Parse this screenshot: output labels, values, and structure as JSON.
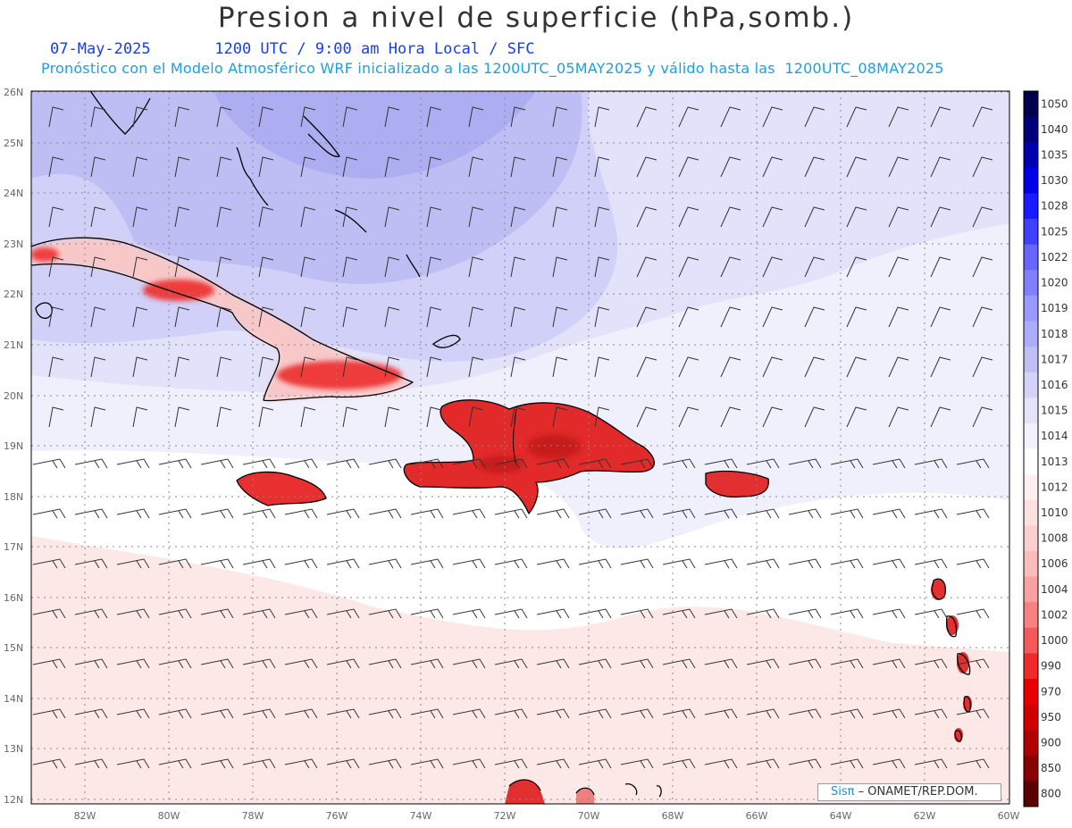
{
  "header": {
    "title": "Presion a nivel de superficie (hPa,somb.)",
    "date": "07-May-2025",
    "time_info": "1200 UTC / 9:00 am Hora Local / SFC",
    "forecast_info": "Pronóstico con el Modelo Atmosférico WRF inicializado a las 1200UTC_05MAY2025 y válido hasta las  1200UTC_08MAY2025"
  },
  "map": {
    "lon_range": [
      -83.3,
      -60
    ],
    "lat_range": [
      11.8,
      26.1
    ],
    "lat_ticks": [
      "26N",
      "25N",
      "24N",
      "23N",
      "22N",
      "21N",
      "20N",
      "19N",
      "18N",
      "17N",
      "16N",
      "15N",
      "14N",
      "13N",
      "12N"
    ],
    "lon_ticks": [
      "82W",
      "80W",
      "78W",
      "76W",
      "74W",
      "72W",
      "70W",
      "68W",
      "66W",
      "64W",
      "62W",
      "60W"
    ],
    "grid": true
  },
  "colorbar": {
    "levels": [
      "1050",
      "1040",
      "1035",
      "1030",
      "1028",
      "1025",
      "1022",
      "1020",
      "1019",
      "1018",
      "1017",
      "1016",
      "1015",
      "1014",
      "1013",
      "1012",
      "1010",
      "1008",
      "1006",
      "1004",
      "1002",
      "1000",
      "990",
      "970",
      "950",
      "900",
      "850",
      "800"
    ],
    "colors": [
      "#00004d",
      "#00007a",
      "#0000b0",
      "#0000e6",
      "#1a1aff",
      "#4040ff",
      "#6666ff",
      "#8080ff",
      "#9999ff",
      "#adadff",
      "#bfbff5",
      "#d3d3fa",
      "#e3e3fa",
      "#f2f2fc",
      "#ffffff",
      "#fff0f0",
      "#fde1e1",
      "#fdd0d0",
      "#fdbcbc",
      "#f9a0a0",
      "#f78080",
      "#f55a5a",
      "#ee2a2a",
      "#e80000",
      "#d00000",
      "#b00000",
      "#880000",
      "#5a0000"
    ]
  },
  "credit": {
    "logo": "Sisπ",
    "text": " – ONAMET/REP.DOM."
  }
}
